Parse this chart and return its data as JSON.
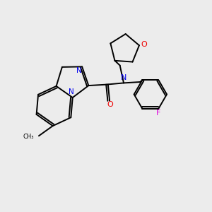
{
  "bg_color": "#ececec",
  "bond_color": "#000000",
  "N_color": "#0000ee",
  "O_color": "#ee0000",
  "F_color": "#dd00dd",
  "line_width": 1.4,
  "figsize": [
    3.0,
    3.0
  ],
  "dpi": 100,
  "xlim": [
    0,
    10
  ],
  "ylim": [
    0,
    10
  ]
}
